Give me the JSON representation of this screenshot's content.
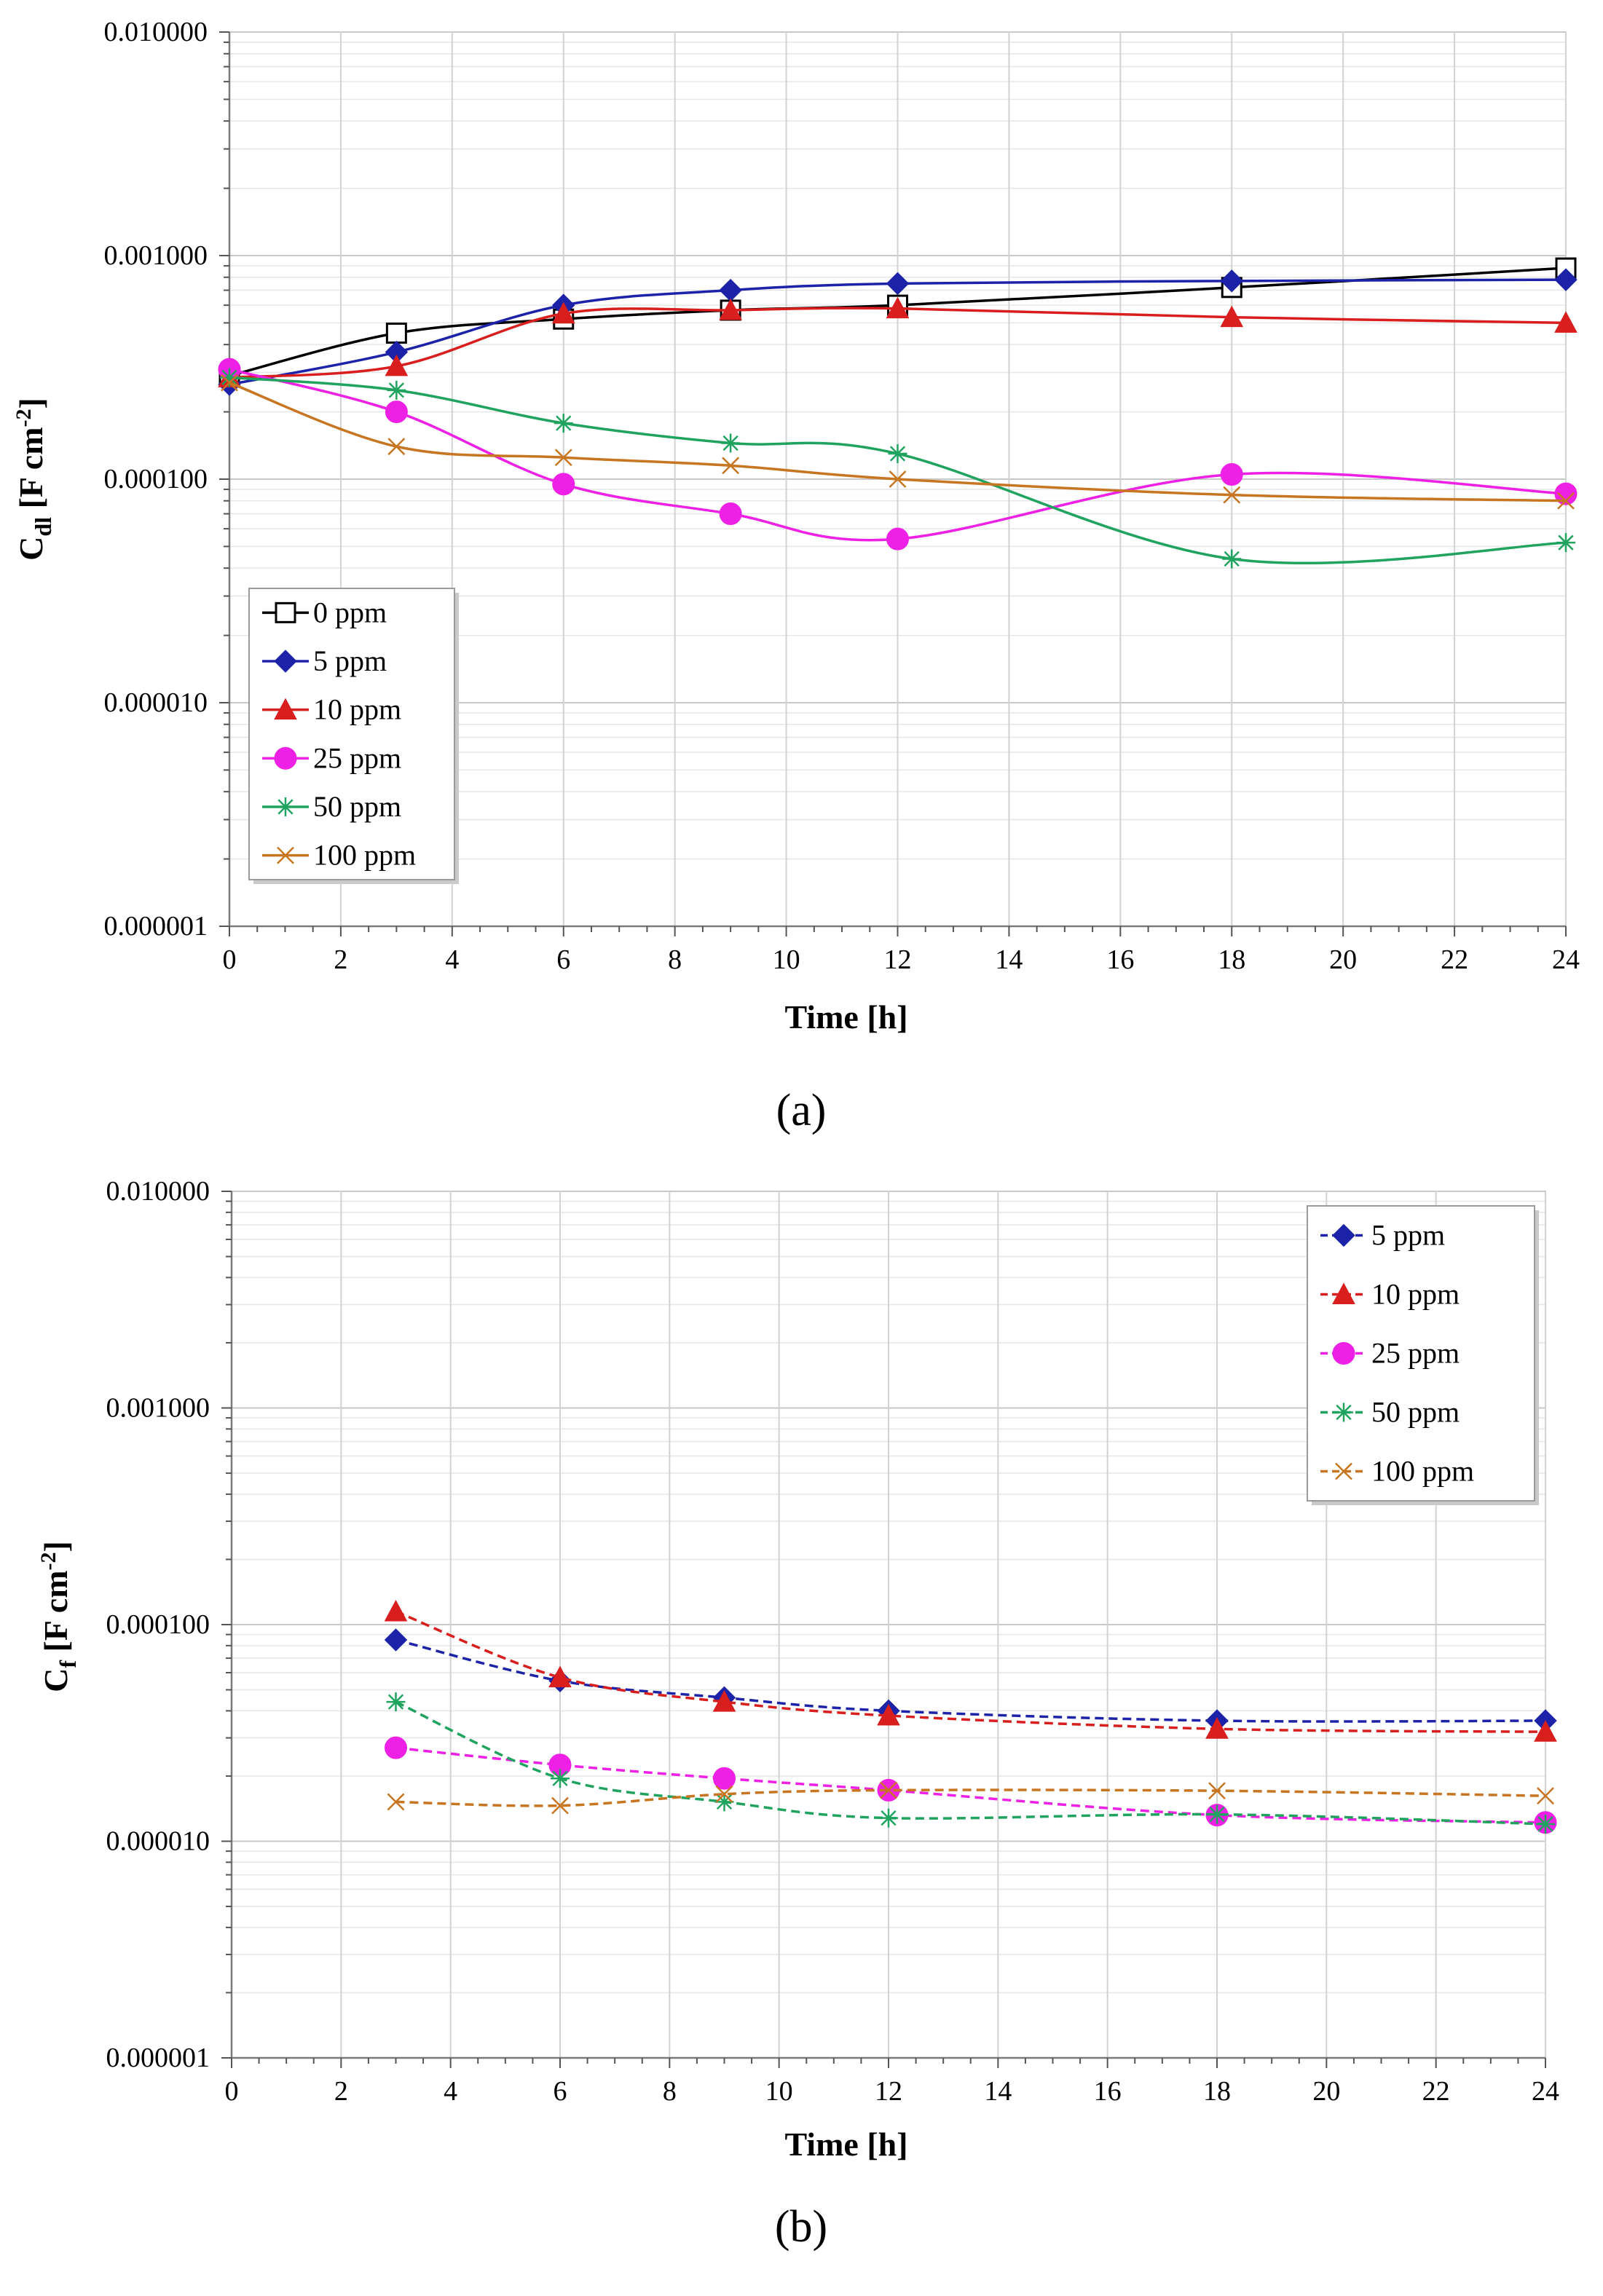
{
  "chart_data": [
    {
      "type": "line",
      "panel_label": "(a)",
      "xlabel": "Time  [h]",
      "ylabel": "Cdl [F cm-2]",
      "ylabel_parts": {
        "main": "C",
        "sub": "dl",
        "unit": " [F cm",
        "sup": "-2",
        "end": "]"
      },
      "xlim": [
        0,
        24
      ],
      "ylim": [
        1e-06,
        0.01
      ],
      "yscale": "log",
      "x_ticks": [
        "0",
        "2",
        "4",
        "6",
        "8",
        "10",
        "12",
        "14",
        "16",
        "18",
        "20",
        "22",
        "24"
      ],
      "y_ticks": [
        "0.000001",
        "0.000010",
        "0.000100",
        "0.001000",
        "0.010000"
      ],
      "grid": true,
      "legend_position": "bottom-left",
      "x": [
        0,
        3,
        6,
        9,
        12,
        18,
        24
      ],
      "series": [
        {
          "name": "0 ppm",
          "color": "#000000",
          "marker": "open-square",
          "dashed": false,
          "values": [
            0.00029,
            0.00045,
            0.00052,
            0.00057,
            0.0006,
            0.00072,
            0.00088
          ]
        },
        {
          "name": "5 ppm",
          "color": "#1c23a8",
          "marker": "diamond",
          "dashed": false,
          "values": [
            0.000265,
            0.00037,
            0.0006,
            0.0007,
            0.00075,
            0.00077,
            0.00078
          ]
        },
        {
          "name": "10 ppm",
          "color": "#d91e1e",
          "marker": "triangle",
          "dashed": false,
          "values": [
            0.000285,
            0.00032,
            0.00055,
            0.00057,
            0.00058,
            0.00053,
            0.0005
          ]
        },
        {
          "name": "25 ppm",
          "color": "#ee20e6",
          "marker": "circle",
          "dashed": false,
          "values": [
            0.00031,
            0.0002,
            9.5e-05,
            7e-05,
            5.4e-05,
            0.000105,
            8.6e-05
          ]
        },
        {
          "name": "50 ppm",
          "color": "#1fa35e",
          "marker": "asterisk",
          "dashed": false,
          "values": [
            0.000285,
            0.00025,
            0.000178,
            0.000145,
            0.00013,
            4.4e-05,
            5.2e-05
          ]
        },
        {
          "name": "100 ppm",
          "color": "#c87522",
          "marker": "x",
          "dashed": false,
          "values": [
            0.00027,
            0.00014,
            0.000125,
            0.000115,
            0.0001,
            8.5e-05,
            8e-05
          ]
        }
      ]
    },
    {
      "type": "line",
      "panel_label": "(b)",
      "xlabel": "Time  [h]",
      "ylabel": "Cf [F cm-2]",
      "ylabel_parts": {
        "main": "C",
        "sub": "f",
        "unit": " [F cm",
        "sup": "-2",
        "end": "]"
      },
      "xlim": [
        0,
        24
      ],
      "ylim": [
        1e-06,
        0.01
      ],
      "yscale": "log",
      "x_ticks": [
        "0",
        "2",
        "4",
        "6",
        "8",
        "10",
        "12",
        "14",
        "16",
        "18",
        "20",
        "22",
        "24"
      ],
      "y_ticks": [
        "0.000001",
        "0.000010",
        "0.000100",
        "0.001000",
        "0.010000"
      ],
      "grid": true,
      "legend_position": "top-right",
      "x": [
        3,
        6,
        9,
        12,
        18,
        24
      ],
      "series": [
        {
          "name": "5 ppm",
          "color": "#1c23a8",
          "marker": "diamond",
          "dashed": true,
          "values": [
            8.5e-05,
            5.5e-05,
            4.6e-05,
            4e-05,
            3.6e-05,
            3.6e-05
          ]
        },
        {
          "name": "10 ppm",
          "color": "#d91e1e",
          "marker": "triangle",
          "dashed": true,
          "values": [
            0.000115,
            5.7e-05,
            4.4e-05,
            3.8e-05,
            3.3e-05,
            3.2e-05
          ]
        },
        {
          "name": "25 ppm",
          "color": "#ee20e6",
          "marker": "circle",
          "dashed": true,
          "values": [
            2.7e-05,
            2.25e-05,
            1.95e-05,
            1.72e-05,
            1.32e-05,
            1.22e-05
          ]
        },
        {
          "name": "50 ppm",
          "color": "#1fa35e",
          "marker": "asterisk",
          "dashed": true,
          "values": [
            4.4e-05,
            1.95e-05,
            1.52e-05,
            1.28e-05,
            1.33e-05,
            1.2e-05
          ]
        },
        {
          "name": "100 ppm",
          "color": "#c87522",
          "marker": "x",
          "dashed": true,
          "values": [
            1.52e-05,
            1.46e-05,
            1.65e-05,
            1.72e-05,
            1.71e-05,
            1.62e-05
          ]
        }
      ]
    }
  ]
}
